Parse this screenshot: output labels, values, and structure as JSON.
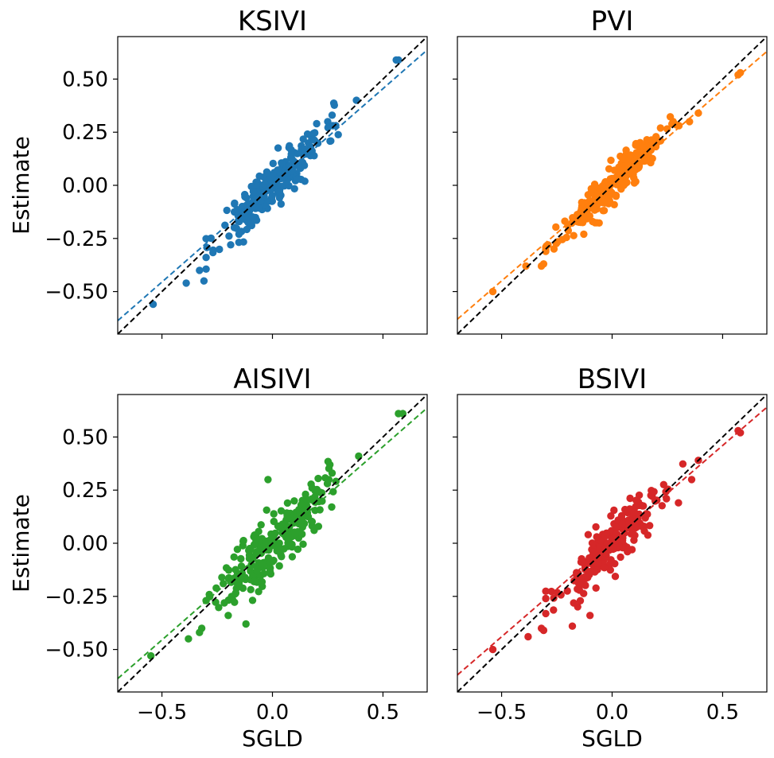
{
  "chart_data": [
    {
      "type": "scatter",
      "title": "KSIVI",
      "color": "#1f77b4",
      "xlabel": "",
      "ylabel": "Estimate",
      "xlim": [
        -0.7,
        0.7
      ],
      "ylim": [
        -0.7,
        0.7
      ],
      "xticks": [
        "−0.5",
        "0.0",
        "0.5"
      ],
      "yticks": [
        "−0.50",
        "−0.25",
        "0.00",
        "0.25",
        "0.50"
      ],
      "show_x_tick_labels": false,
      "show_y_tick_labels": true,
      "fit_line": {
        "slope": 0.91,
        "intercept": 0.0
      },
      "identity_line": true,
      "seed": 11,
      "spread": 0.055,
      "fixed_points": [
        [
          -0.54,
          -0.56
        ],
        [
          0.57,
          0.59
        ],
        [
          0.56,
          0.59
        ],
        [
          0.38,
          0.4
        ],
        [
          -0.39,
          -0.46
        ],
        [
          -0.31,
          -0.45
        ],
        [
          -0.33,
          -0.4
        ],
        [
          0.27,
          0.33
        ],
        [
          0.25,
          0.3
        ],
        [
          0.2,
          0.29
        ]
      ]
    },
    {
      "type": "scatter",
      "title": "PVI",
      "color": "#ff7f0e",
      "xlabel": "",
      "ylabel": "",
      "xlim": [
        -0.7,
        0.7
      ],
      "ylim": [
        -0.7,
        0.7
      ],
      "xticks": [
        "−0.5",
        "0.0",
        "0.5"
      ],
      "yticks": [
        "−0.50",
        "−0.25",
        "0.00",
        "0.25",
        "0.50"
      ],
      "show_x_tick_labels": false,
      "show_y_tick_labels": false,
      "fit_line": {
        "slope": 0.9,
        "intercept": 0.0
      },
      "identity_line": true,
      "seed": 23,
      "spread": 0.04,
      "fixed_points": [
        [
          -0.54,
          -0.5
        ],
        [
          0.57,
          0.52
        ],
        [
          0.58,
          0.53
        ],
        [
          0.39,
          0.34
        ],
        [
          -0.39,
          -0.38
        ],
        [
          -0.32,
          -0.38
        ],
        [
          -0.31,
          -0.37
        ],
        [
          0.35,
          0.3
        ],
        [
          -0.29,
          -0.28
        ],
        [
          0.28,
          0.29
        ]
      ]
    },
    {
      "type": "scatter",
      "title": "AISIVI",
      "color": "#2ca02c",
      "xlabel": "SGLD",
      "ylabel": "Estimate",
      "xlim": [
        -0.7,
        0.7
      ],
      "ylim": [
        -0.7,
        0.7
      ],
      "xticks": [
        "−0.5",
        "0.0",
        "0.5"
      ],
      "yticks": [
        "−0.50",
        "−0.25",
        "0.00",
        "0.25",
        "0.50"
      ],
      "show_x_tick_labels": true,
      "show_y_tick_labels": true,
      "fit_line": {
        "slope": 0.91,
        "intercept": 0.0
      },
      "identity_line": true,
      "seed": 37,
      "spread": 0.075,
      "fixed_points": [
        [
          -0.55,
          -0.53
        ],
        [
          0.57,
          0.61
        ],
        [
          0.59,
          0.61
        ],
        [
          0.39,
          0.41
        ],
        [
          -0.38,
          -0.45
        ],
        [
          -0.32,
          -0.4
        ],
        [
          -0.33,
          -0.42
        ],
        [
          -0.12,
          -0.38
        ],
        [
          -0.02,
          0.3
        ],
        [
          0.26,
          0.37
        ],
        [
          0.27,
          0.33
        ],
        [
          -0.2,
          -0.34
        ]
      ]
    },
    {
      "type": "scatter",
      "title": "BSIVI",
      "color": "#d62728",
      "xlabel": "SGLD",
      "ylabel": "",
      "xlim": [
        -0.7,
        0.7
      ],
      "ylim": [
        -0.7,
        0.7
      ],
      "xticks": [
        "−0.5",
        "0.0",
        "0.5"
      ],
      "yticks": [
        "−0.50",
        "−0.25",
        "0.00",
        "0.25",
        "0.50"
      ],
      "show_x_tick_labels": true,
      "show_y_tick_labels": false,
      "fit_line": {
        "slope": 0.9,
        "intercept": 0.01
      },
      "identity_line": true,
      "seed": 53,
      "spread": 0.06,
      "fixed_points": [
        [
          -0.54,
          -0.5
        ],
        [
          0.57,
          0.53
        ],
        [
          0.58,
          0.52
        ],
        [
          0.39,
          0.39
        ],
        [
          -0.38,
          -0.44
        ],
        [
          -0.32,
          -0.4
        ],
        [
          -0.31,
          -0.41
        ],
        [
          -0.18,
          -0.39
        ],
        [
          -0.1,
          -0.34
        ],
        [
          0.36,
          0.3
        ],
        [
          0.3,
          0.19
        ],
        [
          -0.3,
          -0.26
        ]
      ]
    }
  ]
}
